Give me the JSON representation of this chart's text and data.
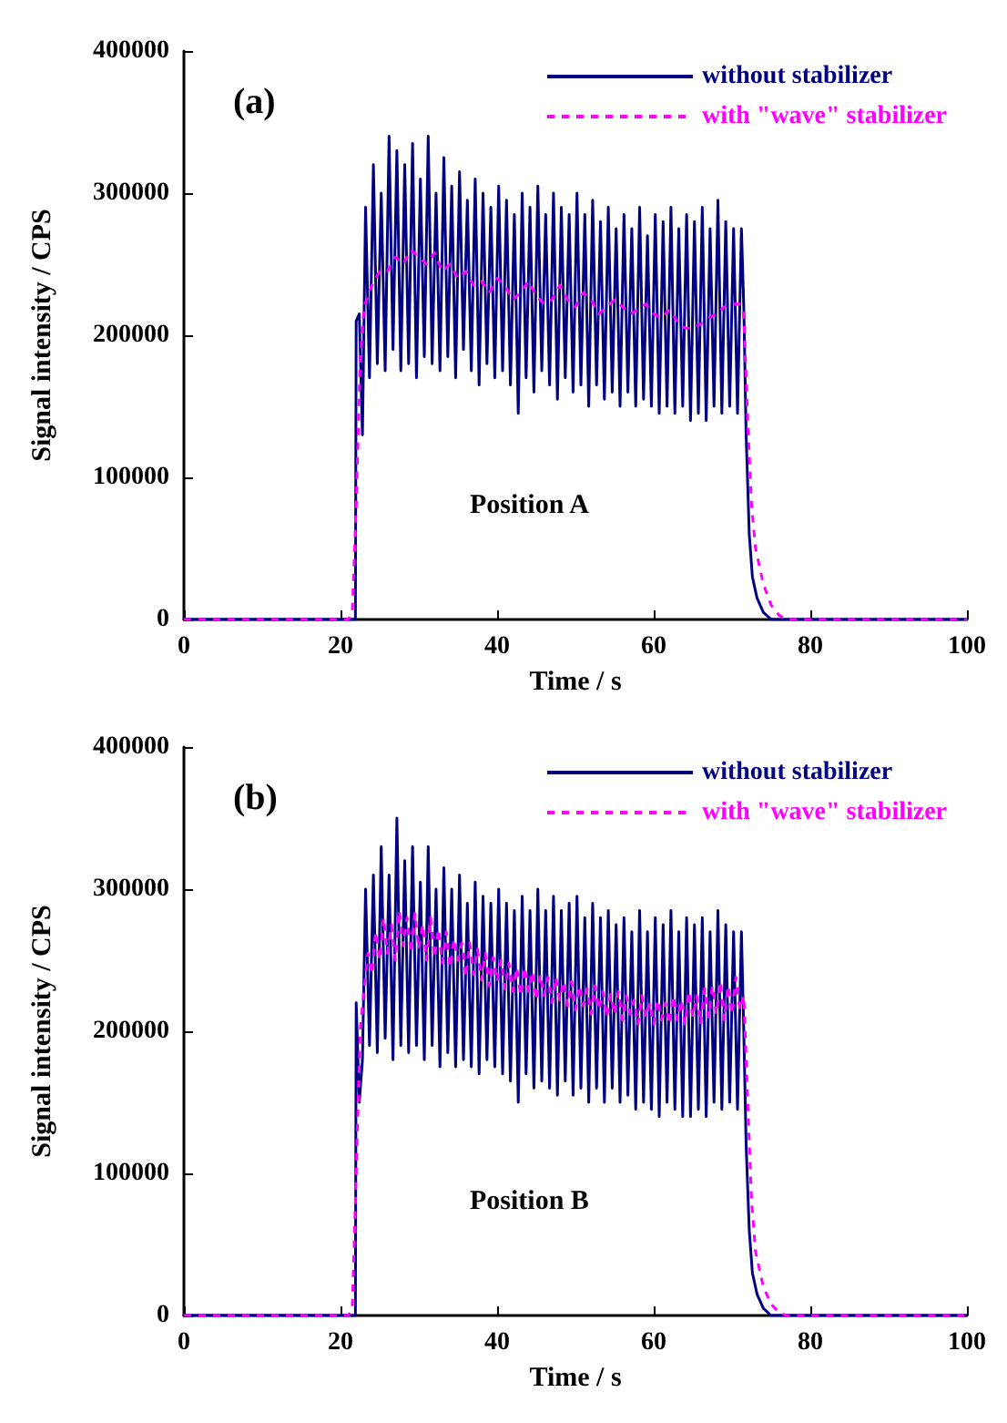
{
  "chart_data": [
    {
      "type": "line",
      "annotations": [
        "(a)",
        "Position A"
      ],
      "xlabel": "Time / s",
      "ylabel": "Signal intensity / CPS",
      "xlim": [
        0,
        100
      ],
      "xticks": [
        0,
        20,
        40,
        60,
        80,
        100
      ],
      "ylim": [
        0,
        400000
      ],
      "yticks": [
        0,
        100000,
        200000,
        300000,
        400000
      ],
      "grid": false,
      "legend": "top right",
      "marker": "none",
      "series": [
        {
          "name": "without stabilizer",
          "color": "#000080",
          "line_style": "solid",
          "x": [
            0,
            21.9,
            22.0,
            22.4,
            22.8,
            23.2,
            23.7,
            24.2,
            24.7,
            25.2,
            25.7,
            26.2,
            26.7,
            27.2,
            27.7,
            28.2,
            28.7,
            29.2,
            29.7,
            30.2,
            30.7,
            31.2,
            31.7,
            32.2,
            32.7,
            33.2,
            33.7,
            34.2,
            34.7,
            35.2,
            35.7,
            36.2,
            36.7,
            37.2,
            37.7,
            38.2,
            38.7,
            39.2,
            39.7,
            40.2,
            40.7,
            41.2,
            41.7,
            42.2,
            42.7,
            43.2,
            43.7,
            44.2,
            44.7,
            45.2,
            45.7,
            46.2,
            46.7,
            47.2,
            47.7,
            48.2,
            48.7,
            49.2,
            49.7,
            50.2,
            50.7,
            51.2,
            51.7,
            52.2,
            52.7,
            53.2,
            53.7,
            54.2,
            54.7,
            55.2,
            55.7,
            56.2,
            56.7,
            57.2,
            57.7,
            58.2,
            58.7,
            59.2,
            59.7,
            60.2,
            60.7,
            61.2,
            61.7,
            62.2,
            62.7,
            63.2,
            63.7,
            64.2,
            64.7,
            65.2,
            65.7,
            66.2,
            66.7,
            67.2,
            67.7,
            68.2,
            68.7,
            69.2,
            69.7,
            70.2,
            70.7,
            71.2,
            71.5,
            71.8,
            72.2,
            72.6,
            73.2,
            74,
            75,
            100
          ],
          "values": [
            0,
            0,
            210000,
            215000,
            130000,
            290000,
            170000,
            320000,
            180000,
            300000,
            175000,
            340000,
            190000,
            330000,
            175000,
            320000,
            180000,
            335000,
            170000,
            310000,
            185000,
            340000,
            180000,
            300000,
            175000,
            325000,
            185000,
            305000,
            170000,
            315000,
            190000,
            295000,
            175000,
            310000,
            165000,
            300000,
            180000,
            290000,
            170000,
            305000,
            175000,
            295000,
            165000,
            285000,
            145000,
            300000,
            170000,
            290000,
            160000,
            305000,
            175000,
            285000,
            165000,
            300000,
            155000,
            290000,
            170000,
            285000,
            160000,
            300000,
            165000,
            285000,
            150000,
            295000,
            165000,
            280000,
            155000,
            290000,
            160000,
            275000,
            150000,
            285000,
            160000,
            275000,
            150000,
            290000,
            155000,
            270000,
            150000,
            285000,
            145000,
            280000,
            150000,
            290000,
            145000,
            275000,
            150000,
            285000,
            140000,
            280000,
            145000,
            290000,
            140000,
            275000,
            150000,
            295000,
            145000,
            280000,
            150000,
            275000,
            145000,
            275000,
            220000,
            130000,
            60000,
            30000,
            15000,
            5000,
            0,
            0
          ]
        },
        {
          "name": "with \"wave\" stabilizer",
          "color": "#ff00ff",
          "line_style": "dashed",
          "x": [
            0,
            21,
            21.5,
            22,
            22.5,
            23,
            24,
            25,
            26,
            27,
            28,
            29,
            30,
            31,
            32,
            33,
            34,
            35,
            36,
            37,
            38,
            39,
            40,
            41,
            42,
            43,
            44,
            45,
            46,
            47,
            48,
            49,
            50,
            51,
            52,
            53,
            54,
            55,
            56,
            57,
            58,
            59,
            60,
            61,
            62,
            63,
            64,
            65,
            66,
            67,
            68,
            69,
            70,
            71,
            71.5,
            72,
            72.5,
            73,
            74,
            75,
            76,
            77,
            100
          ],
          "values": [
            0,
            0,
            5000,
            80000,
            180000,
            220000,
            235000,
            245000,
            245000,
            255000,
            250000,
            260000,
            255000,
            250000,
            258000,
            245000,
            250000,
            240000,
            245000,
            235000,
            238000,
            230000,
            240000,
            235000,
            225000,
            230000,
            238000,
            228000,
            222000,
            225000,
            235000,
            225000,
            220000,
            230000,
            225000,
            215000,
            220000,
            225000,
            220000,
            215000,
            218000,
            222000,
            215000,
            212000,
            218000,
            210000,
            205000,
            205000,
            208000,
            212000,
            215000,
            220000,
            222000,
            222000,
            215000,
            140000,
            80000,
            50000,
            25000,
            10000,
            3000,
            0,
            0
          ]
        }
      ]
    },
    {
      "type": "line",
      "annotations": [
        "(b)",
        "Position B"
      ],
      "xlabel": "Time / s",
      "ylabel": "Signal intensity / CPS",
      "xlim": [
        0,
        100
      ],
      "xticks": [
        0,
        20,
        40,
        60,
        80,
        100
      ],
      "ylim": [
        0,
        400000
      ],
      "yticks": [
        0,
        100000,
        200000,
        300000,
        400000
      ],
      "grid": false,
      "legend": "top right",
      "marker": "none",
      "series": [
        {
          "name": "without stabilizer",
          "color": "#000080",
          "line_style": "solid",
          "x": [
            0,
            21.9,
            22.0,
            22.4,
            22.8,
            23.2,
            23.7,
            24.2,
            24.7,
            25.2,
            25.7,
            26.2,
            26.7,
            27.2,
            27.7,
            28.2,
            28.7,
            29.2,
            29.7,
            30.2,
            30.7,
            31.2,
            31.7,
            32.2,
            32.7,
            33.2,
            33.7,
            34.2,
            34.7,
            35.2,
            35.7,
            36.2,
            36.7,
            37.2,
            37.7,
            38.2,
            38.7,
            39.2,
            39.7,
            40.2,
            40.7,
            41.2,
            41.7,
            42.2,
            42.7,
            43.2,
            43.7,
            44.2,
            44.7,
            45.2,
            45.7,
            46.2,
            46.7,
            47.2,
            47.7,
            48.2,
            48.7,
            49.2,
            49.7,
            50.2,
            50.7,
            51.2,
            51.7,
            52.2,
            52.7,
            53.2,
            53.7,
            54.2,
            54.7,
            55.2,
            55.7,
            56.2,
            56.7,
            57.2,
            57.7,
            58.2,
            58.7,
            59.2,
            59.7,
            60.2,
            60.7,
            61.2,
            61.7,
            62.2,
            62.7,
            63.2,
            63.7,
            64.2,
            64.7,
            65.2,
            65.7,
            66.2,
            66.7,
            67.2,
            67.7,
            68.2,
            68.7,
            69.2,
            69.7,
            70.2,
            70.7,
            71.2,
            71.5,
            71.8,
            72.2,
            72.6,
            73.2,
            74,
            75,
            100
          ],
          "values": [
            0,
            0,
            220000,
            150000,
            180000,
            300000,
            190000,
            310000,
            185000,
            330000,
            195000,
            310000,
            180000,
            350000,
            190000,
            320000,
            185000,
            330000,
            190000,
            305000,
            180000,
            330000,
            190000,
            300000,
            175000,
            315000,
            185000,
            300000,
            175000,
            310000,
            180000,
            290000,
            175000,
            305000,
            170000,
            295000,
            180000,
            290000,
            175000,
            300000,
            170000,
            290000,
            165000,
            285000,
            150000,
            295000,
            170000,
            285000,
            160000,
            300000,
            165000,
            285000,
            160000,
            295000,
            155000,
            285000,
            165000,
            290000,
            155000,
            295000,
            160000,
            280000,
            150000,
            290000,
            160000,
            280000,
            150000,
            285000,
            160000,
            275000,
            150000,
            280000,
            155000,
            270000,
            145000,
            285000,
            150000,
            270000,
            145000,
            280000,
            140000,
            275000,
            150000,
            285000,
            145000,
            270000,
            140000,
            280000,
            140000,
            275000,
            145000,
            280000,
            140000,
            270000,
            150000,
            285000,
            145000,
            275000,
            150000,
            270000,
            145000,
            270000,
            200000,
            120000,
            60000,
            30000,
            15000,
            5000,
            0,
            0
          ]
        },
        {
          "name": "with \"wave\" stabilizer",
          "color": "#ff00ff",
          "line_style": "dashed",
          "x": [
            0,
            21,
            21.5,
            22,
            22.5,
            23,
            23.5,
            24,
            24.5,
            25,
            25.5,
            26,
            26.5,
            27,
            27.5,
            28,
            28.5,
            29,
            29.5,
            30,
            30.5,
            31,
            31.5,
            32,
            32.5,
            33,
            33.5,
            34,
            34.5,
            35,
            35.5,
            36,
            36.5,
            37,
            37.5,
            38,
            38.5,
            39,
            39.5,
            40,
            40.5,
            41,
            41.5,
            42,
            42.5,
            43,
            43.5,
            44,
            44.5,
            45,
            45.5,
            46,
            46.5,
            47,
            47.5,
            48,
            48.5,
            49,
            49.5,
            50,
            50.5,
            51,
            51.5,
            52,
            52.5,
            53,
            53.5,
            54,
            54.5,
            55,
            55.5,
            56,
            56.5,
            57,
            57.5,
            58,
            58.5,
            59,
            59.5,
            60,
            60.5,
            61,
            61.5,
            62,
            62.5,
            63,
            63.5,
            64,
            64.5,
            65,
            65.5,
            66,
            66.5,
            67,
            67.5,
            68,
            68.5,
            69,
            69.5,
            70,
            70.5,
            71,
            71.5,
            72,
            72.5,
            73,
            74,
            75,
            76,
            77,
            100
          ],
          "values": [
            0,
            0,
            5000,
            100000,
            200000,
            230000,
            255000,
            240000,
            270000,
            250000,
            280000,
            255000,
            275000,
            250000,
            285000,
            260000,
            280000,
            255000,
            283000,
            258000,
            275000,
            250000,
            280000,
            252000,
            272000,
            248000,
            270000,
            245000,
            265000,
            250000,
            262000,
            238000,
            262000,
            240000,
            258000,
            236000,
            255000,
            232000,
            252000,
            235000,
            250000,
            230000,
            248000,
            228000,
            245000,
            225000,
            245000,
            228000,
            242000,
            222000,
            240000,
            225000,
            238000,
            220000,
            238000,
            222000,
            235000,
            218000,
            235000,
            215000,
            232000,
            218000,
            230000,
            212000,
            232000,
            215000,
            228000,
            210000,
            226000,
            212000,
            228000,
            208000,
            225000,
            212000,
            222000,
            205000,
            225000,
            210000,
            220000,
            205000,
            222000,
            208000,
            220000,
            205000,
            225000,
            208000,
            222000,
            205000,
            228000,
            210000,
            225000,
            205000,
            230000,
            210000,
            232000,
            212000,
            235000,
            208000,
            232000,
            212000,
            238000,
            215000,
            225000,
            150000,
            80000,
            45000,
            20000,
            8000,
            2000,
            0,
            0
          ]
        }
      ]
    }
  ]
}
